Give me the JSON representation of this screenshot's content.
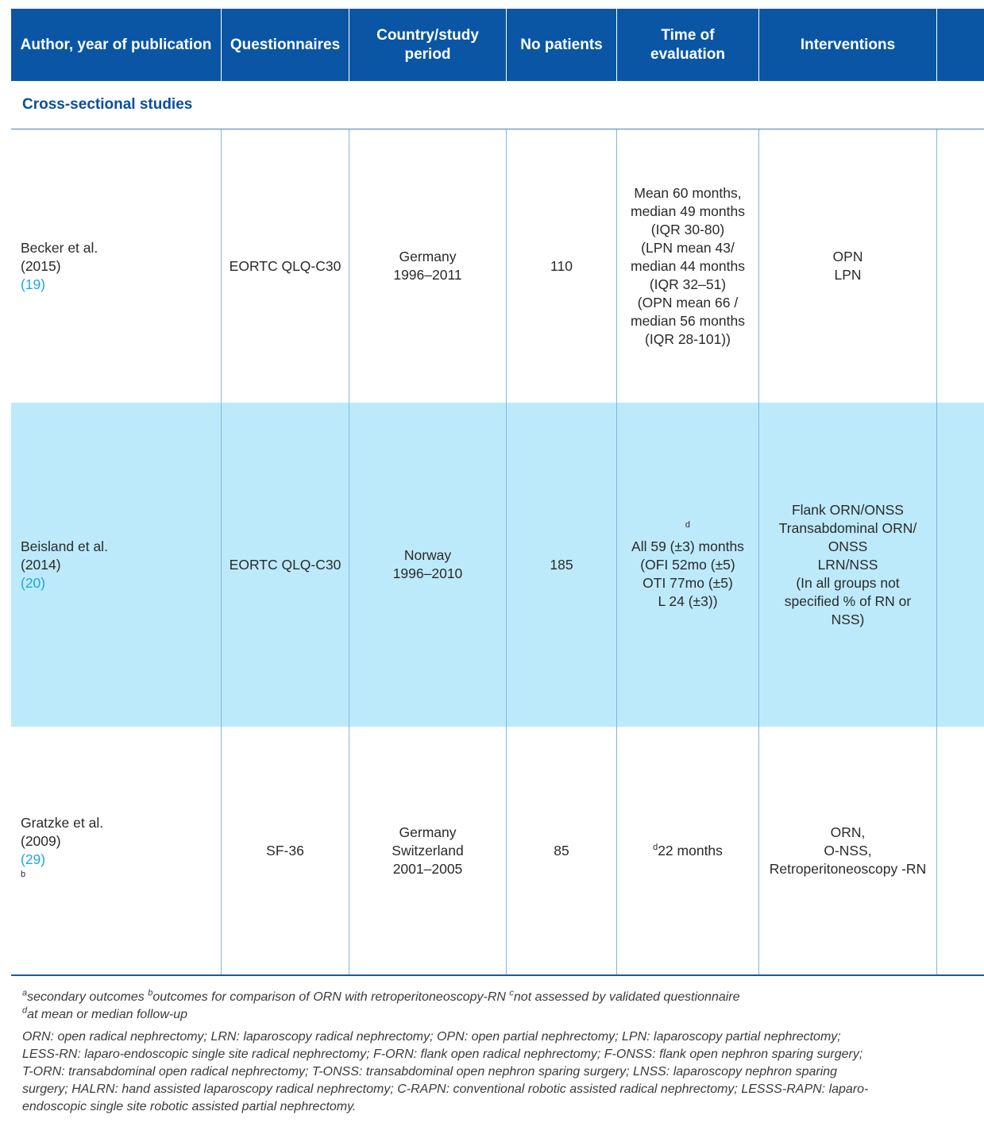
{
  "header": {
    "author": "Author, year of publication",
    "questionnaires": "Questionnaires",
    "country_line1": "Country/study",
    "country_line2": "period",
    "no_patients": "No patients",
    "time_line1": "Time of",
    "time_line2": "evaluation",
    "interventions": "Interventions",
    "last": ""
  },
  "section": {
    "title": "Cross-sectional studies"
  },
  "rows": [
    {
      "author_line1": "Becker et al.",
      "author_year": "(2015)",
      "author_ref": "(19)",
      "author_sup": "",
      "questionnaire": "EORTC QLQ-C30",
      "country_lines": [
        "Germany",
        "1996–2011"
      ],
      "patients": "110",
      "time_sup": "",
      "time_lines": [
        "Mean 60 months,",
        "median 49 months",
        "(IQR 30-80)",
        "(LPN mean 43/",
        "median 44 months",
        "(IQR 32–51)",
        "(OPN mean 66 /",
        "median 56 months",
        "(IQR 28-101))"
      ],
      "intervention_lines": [
        "OPN",
        "LPN"
      ]
    },
    {
      "author_line1": "Beisland et al.",
      "author_year": "(2014)",
      "author_ref": "(20)",
      "author_sup": "",
      "questionnaire": "EORTC QLQ-C30",
      "country_lines": [
        "Norway",
        "1996–2010"
      ],
      "patients": "185",
      "time_sup": "d",
      "time_lines": [
        "All 59 (±3) months",
        "(OFI 52mo (±5)",
        "OTI 77mo (±5)",
        "L 24 (±3))"
      ],
      "intervention_lines": [
        "Flank ORN/ONSS",
        "Transabdominal ORN/",
        "ONSS",
        "LRN/NSS",
        "(In all groups not",
        "specified % of RN or",
        "NSS)"
      ]
    },
    {
      "author_line1": "Gratzke et al.",
      "author_year": "(2009)",
      "author_ref": "(29)",
      "author_sup": "b",
      "questionnaire": "SF-36",
      "country_lines": [
        "Germany",
        "Switzerland",
        "2001–2005"
      ],
      "patients": "85",
      "time_sup": "d",
      "time_lines": [
        "22 months"
      ],
      "intervention_lines": [
        "ORN,",
        "O-NSS,",
        "Retroperitoneoscopy -RN"
      ]
    }
  ],
  "footnotes": {
    "a_sup": "a",
    "a_text": "secondary outcomes ",
    "b_sup": "b",
    "b_text": "outcomes for comparison of ORN with retroperitoneoscopy-RN ",
    "c_sup": "c",
    "c_text": "not assessed by validated questionnaire",
    "d_sup": "d",
    "d_text": "at mean or median follow-up",
    "abbrev_lines": [
      "ORN: open radical nephrectomy; LRN: laparoscopy radical nephrectomy;  OPN: open partial nephrectomy; LPN: laparoscopy partial nephrectomy;",
      "LESS-RN: laparo-endoscopic single site radical nephrectomy; F-ORN: flank open radical nephrectomy; F-ONSS: flank open nephron sparing surgery;",
      "T-ORN: transabdominal open radical nephrectomy; T-ONSS: transabdominal open nephron sparing surgery; LNSS: laparoscopy nephron sparing",
      "surgery; HALRN: hand assisted laparoscopy radical nephrectomy; C-RAPN: conventional robotic assisted radical nephrectomy; LESSS-RAPN: laparo-",
      "endoscopic single site robotic assisted partial nephrectomy."
    ]
  },
  "colors": {
    "header_bg": "#0a56a5",
    "section_text": "#0a4f9a",
    "highlight_row": "#bdeafa",
    "ref_link": "#1ea7e1"
  }
}
